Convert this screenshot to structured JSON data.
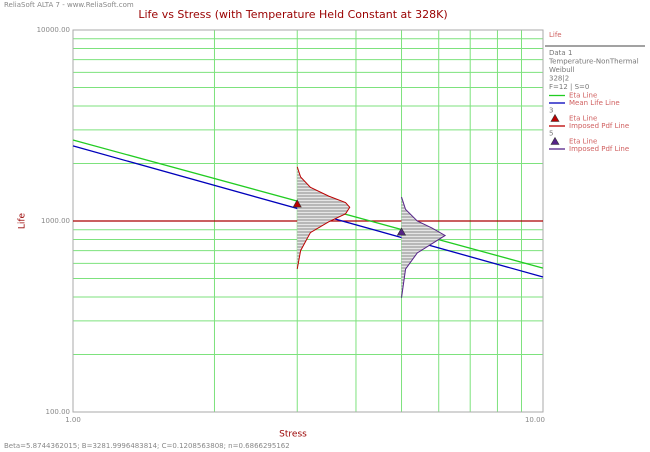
{
  "header": "ReliaSoft ALTA 7 - www.ReliaSoft.com",
  "footer": "Beta=5.8744362015; B=3281.9996483814; C=0.1208563808; n=0.6866295162",
  "chart_data": {
    "type": "line",
    "title": "Life vs Stress (with Temperature Held Constant at 328K)",
    "x_label": "Stress",
    "y_label": "Life",
    "log_x": true,
    "log_y": true,
    "grid": true,
    "xlim": [
      1,
      10
    ],
    "ylim": [
      100,
      10000
    ],
    "xticks": [
      {
        "value": 1,
        "label": "1.00"
      },
      {
        "value": 10,
        "label": "10.00"
      }
    ],
    "yticks": [
      {
        "value": 10000,
        "label": "10000.00"
      },
      {
        "value": 1000,
        "label": "1000.00"
      },
      {
        "value": 100,
        "label": "100.00"
      }
    ],
    "xgrid": [
      2,
      3,
      4,
      5,
      6,
      7,
      8,
      9
    ],
    "ygrid": [
      200,
      300,
      400,
      500,
      600,
      700,
      800,
      900,
      2000,
      3000,
      4000,
      5000,
      6000,
      7000,
      8000,
      9000
    ],
    "grid_color": "#7de27d",
    "legend": {
      "title": "Life",
      "lines": [
        "Data 1",
        "Temperature-NonThermal",
        "Weibull",
        "328|2",
        "F=12 | S=0"
      ]
    },
    "reference_line": {
      "value": 1000,
      "color": "#aa0000"
    },
    "series": [
      {
        "name": "Eta Line",
        "color": "#22cc22",
        "x": [
          1,
          10
        ],
        "values": [
          2655,
          567
        ]
      },
      {
        "name": "Mean Life Line",
        "color": "#0000bb",
        "x": [
          1,
          10
        ],
        "values": [
          2473,
          509
        ]
      },
      {
        "group": "3",
        "name": "Eta Line",
        "color": "#bb0000",
        "marker": "triangle",
        "x": [
          3
        ],
        "values": [
          1227
        ]
      },
      {
        "group": "3",
        "name": "Imposed Pdf Line",
        "color": "#bb0000",
        "marker": "pdf",
        "x": [
          3,
          3.05,
          3.2,
          3.5,
          3.8,
          3.88,
          3.8,
          3.5,
          3.2,
          3.05,
          3
        ],
        "values": [
          1920,
          1700,
          1500,
          1350,
          1250,
          1180,
          1090,
          990,
          870,
          700,
          561
        ]
      },
      {
        "group": "5",
        "name": "Eta Line",
        "color": "#552288",
        "marker": "triangle",
        "x": [
          5
        ],
        "values": [
          875
        ]
      },
      {
        "group": "5",
        "name": "Imposed Pdf Line",
        "color": "#552288",
        "marker": "pdf",
        "x": [
          5,
          5.1,
          5.4,
          5.8,
          6.19,
          5.8,
          5.4,
          5.1,
          5
        ],
        "values": [
          1336,
          1150,
          1000,
          920,
          840,
          760,
          680,
          560,
          396
        ]
      }
    ]
  }
}
